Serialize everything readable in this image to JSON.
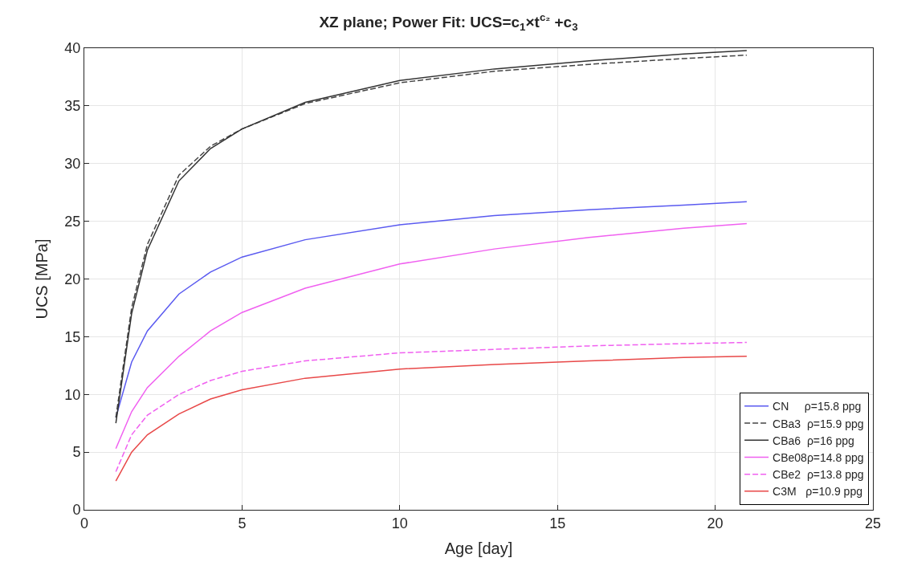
{
  "chart_data": {
    "type": "line",
    "title": "XZ plane; Power Fit: UCS=c$_{1}$×t$^{c₂}$ +c$_{3}$",
    "xlabel": "Age [day]",
    "ylabel": "UCS [MPa]",
    "x": [
      1,
      1.5,
      2,
      3,
      4,
      5,
      7,
      10,
      13,
      16,
      19,
      21
    ],
    "series": [
      {
        "name": "CN     ρ=15.8 ppg",
        "color": "#5a5af0",
        "line_style": "solid",
        "values": [
          8,
          12.8,
          15.5,
          18.7,
          20.6,
          21.9,
          23.4,
          24.7,
          25.5,
          26,
          26.4,
          26.7
        ]
      },
      {
        "name": "CBa3  ρ=15.9 ppg",
        "color": "#444444",
        "line_style": "dashed",
        "values": [
          8,
          17.5,
          23,
          29,
          31.5,
          33,
          35.2,
          37,
          38,
          38.6,
          39.1,
          39.4
        ]
      },
      {
        "name": "CBa6  ρ=16 ppg",
        "color": "#333333",
        "line_style": "solid",
        "values": [
          7.5,
          17,
          22.5,
          28.5,
          31.3,
          33,
          35.3,
          37.2,
          38.2,
          38.9,
          39.5,
          39.8
        ]
      },
      {
        "name": "CBe08ρ=14.8 ppg",
        "color": "#f060f0",
        "line_style": "solid",
        "values": [
          5.3,
          8.5,
          10.6,
          13.3,
          15.5,
          17.1,
          19.2,
          21.3,
          22.6,
          23.6,
          24.4,
          24.8
        ]
      },
      {
        "name": "CBe2  ρ=13.8 ppg",
        "color": "#f060f0",
        "line_style": "dashed",
        "values": [
          3.3,
          6.5,
          8.2,
          10,
          11.2,
          12,
          12.9,
          13.6,
          13.9,
          14.2,
          14.4,
          14.5
        ]
      },
      {
        "name": "C3M   ρ=10.9 ppg",
        "color": "#e84848",
        "line_style": "solid",
        "values": [
          2.5,
          5,
          6.5,
          8.3,
          9.6,
          10.4,
          11.4,
          12.2,
          12.6,
          12.9,
          13.2,
          13.3
        ]
      }
    ],
    "xlim": [
      0,
      25
    ],
    "xticks": [
      0,
      5,
      10,
      15,
      20,
      25
    ],
    "ylim": [
      0,
      40
    ],
    "yticks": [
      0,
      5,
      10,
      15,
      20,
      25,
      30,
      35,
      40
    ],
    "grid": true,
    "legend": "bottom right",
    "marker": "none"
  }
}
